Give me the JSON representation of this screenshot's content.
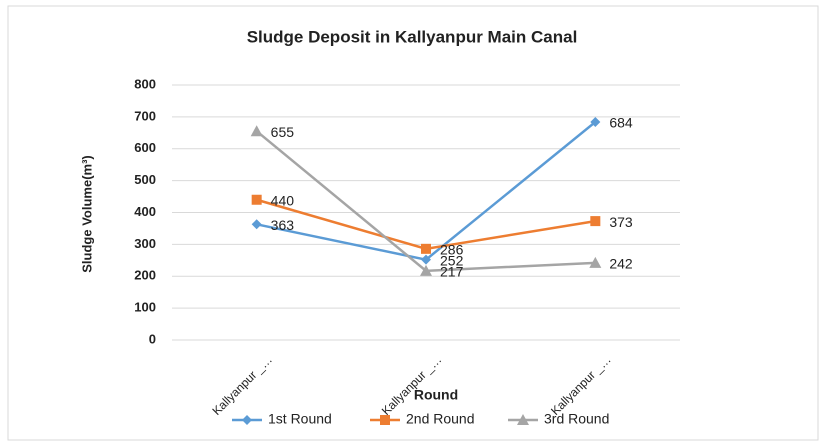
{
  "chart_data": {
    "type": "line",
    "title": "Sludge Deposit in Kallyanpur Main Canal",
    "x_label": "Round",
    "y_label": "Sludge Volume(m³)",
    "categories": [
      "Kallyanpur _…",
      "Kallyanpur _…",
      "Kallyanpur _…"
    ],
    "series": [
      {
        "name": "1st Round",
        "color": "#5b9bd5",
        "marker": "diamond",
        "values": [
          363,
          252,
          684
        ]
      },
      {
        "name": "2nd Round",
        "color": "#ed7d31",
        "marker": "square",
        "values": [
          440,
          286,
          373
        ]
      },
      {
        "name": "3rd Round",
        "color": "#a5a5a5",
        "marker": "triangle",
        "values": [
          655,
          217,
          242
        ]
      }
    ],
    "ylim": [
      0,
      800
    ],
    "yticks": [
      0,
      100,
      200,
      300,
      400,
      500,
      600,
      700,
      800
    ],
    "grid": true,
    "legend": "bottom",
    "data_labels": true
  }
}
